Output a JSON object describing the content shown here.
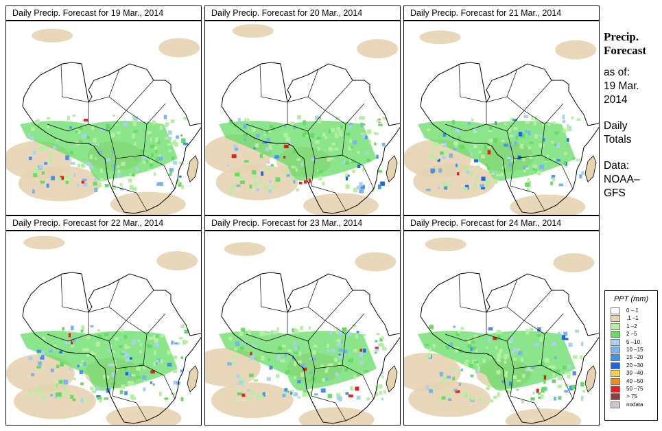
{
  "panels": [
    {
      "title": "Daily Precip. Forecast for  19 Mar., 2014",
      "seed": 19
    },
    {
      "title": "Daily Precip. Forecast for  20 Mar., 2014",
      "seed": 20
    },
    {
      "title": "Daily Precip. Forecast for  21 Mar., 2014",
      "seed": 21
    },
    {
      "title": "Daily Precip. Forecast for  22 Mar., 2014",
      "seed": 22
    },
    {
      "title": "Daily Precip. Forecast for  23 Mar., 2014",
      "seed": 23
    },
    {
      "title": "Daily Precip. Forecast for  24 Mar., 2014",
      "seed": 24
    }
  ],
  "side": {
    "title_line1": "Precip.",
    "title_line2": "Forecast",
    "asof_line1": "as of:",
    "asof_line2": "19 Mar.",
    "asof_line3": "2014",
    "daily_line1": "Daily",
    "daily_line2": "Totals",
    "data_line1": "Data:",
    "data_line2": "NOAA–",
    "data_line3": "GFS"
  },
  "legend": {
    "title": "PPT (mm)",
    "entries": [
      {
        "label": "0 –.1",
        "color": "#ffffff"
      },
      {
        "label": ".1 –1",
        "color": "#e6d3b0"
      },
      {
        "label": "1 –2",
        "color": "#b4f0a0"
      },
      {
        "label": "2 –5",
        "color": "#64dc64"
      },
      {
        "label": "5 –10",
        "color": "#aad2f0"
      },
      {
        "label": "10 –15",
        "color": "#78b4f0"
      },
      {
        "label": "15 –20",
        "color": "#4690f0"
      },
      {
        "label": "20 –30",
        "color": "#1e64e6"
      },
      {
        "label": "30 –40",
        "color": "#f0d250"
      },
      {
        "label": "40 –50",
        "color": "#f08c1e"
      },
      {
        "label": "50 –75",
        "color": "#e61e1e"
      },
      {
        "label": "> 75",
        "color": "#963c3c"
      },
      {
        "label": "nodata",
        "color": "#c8c8c8"
      }
    ]
  }
}
